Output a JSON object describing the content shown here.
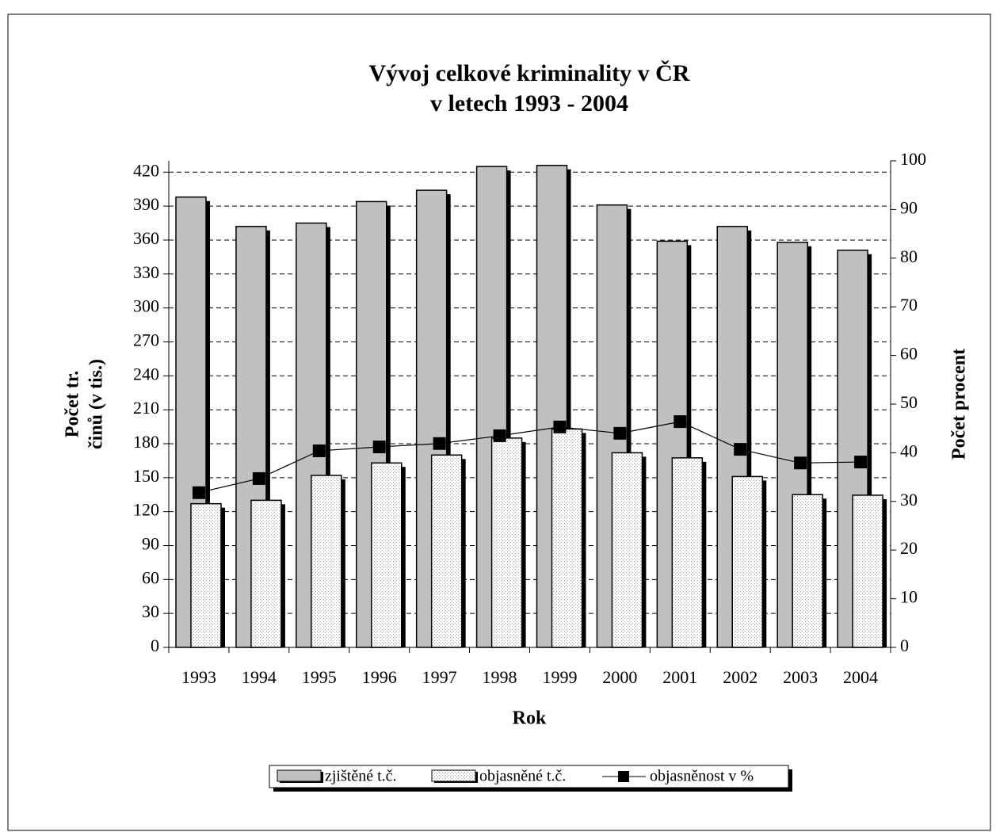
{
  "chart_data": {
    "type": "bar-line",
    "title_lines": [
      "Vývoj celkové kriminality v ČR",
      "v letech 1993 - 2004"
    ],
    "xlabel": "Rok",
    "ylabel_lines": [
      "Počet tr.",
      "činů (v tis.)"
    ],
    "y2label": "Počet procent",
    "categories": [
      "1993",
      "1994",
      "1995",
      "1996",
      "1997",
      "1998",
      "1999",
      "2000",
      "2001",
      "2002",
      "2003",
      "2004"
    ],
    "series": [
      {
        "name": "zjištěné t.č.",
        "kind": "bar",
        "color": "#c0c0c0",
        "values": [
          398,
          372,
          375,
          394,
          404,
          425,
          426,
          391,
          359,
          372,
          358,
          351
        ]
      },
      {
        "name": "objasněné t.č.",
        "kind": "bar",
        "color": "#ffffff",
        "pattern": "dots",
        "values": [
          127,
          130,
          152,
          163,
          170,
          185,
          193,
          172,
          167.5,
          151,
          135,
          134.5
        ]
      },
      {
        "name": "objasněnost v %",
        "kind": "line",
        "axis": "y2",
        "color": "#000000",
        "values": [
          31.8,
          34.7,
          40.4,
          41.2,
          41.9,
          43.5,
          45.3,
          44.0,
          46.4,
          40.7,
          37.9,
          38.1
        ]
      }
    ],
    "ylim": [
      0,
      430
    ],
    "yticks": [
      0,
      30,
      60,
      90,
      120,
      150,
      180,
      210,
      240,
      270,
      300,
      330,
      360,
      390,
      420
    ],
    "y2lim": [
      0,
      100
    ],
    "y2ticks": [
      0,
      10,
      20,
      30,
      40,
      50,
      60,
      70,
      80,
      90,
      100
    ],
    "grid": true,
    "legend": "bottom"
  }
}
